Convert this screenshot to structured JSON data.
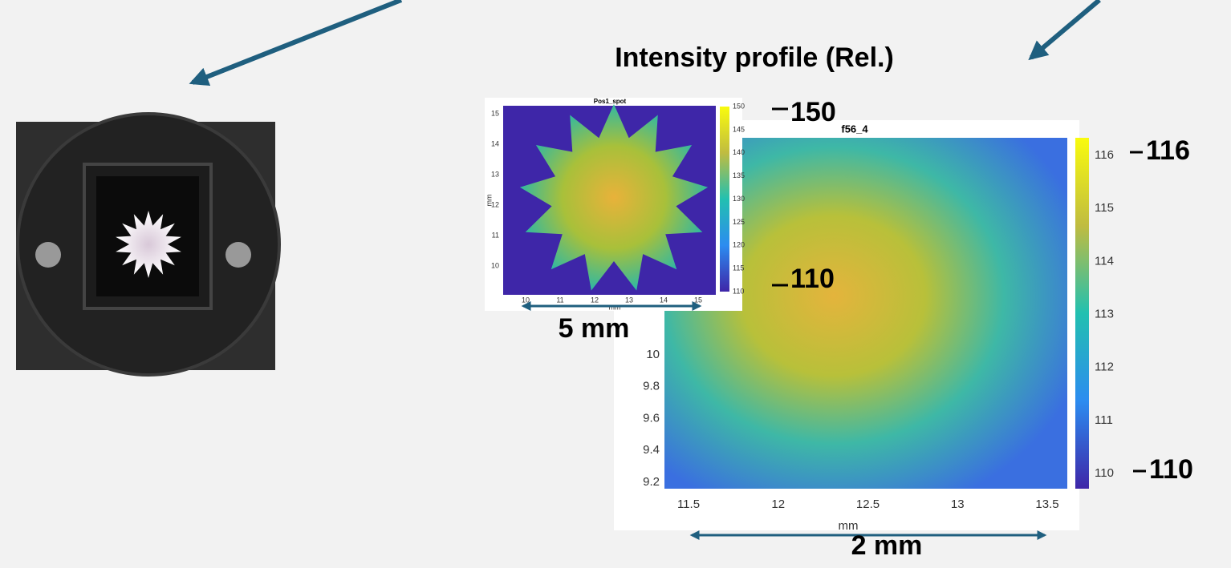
{
  "title": "Intensity profile (Rel.)",
  "small_plot": {
    "title": "Pos1_spot",
    "xlabel": "mm",
    "ylabel": "mm",
    "xticks": [
      "10",
      "11",
      "12",
      "13",
      "14",
      "15"
    ],
    "yticks": [
      "15",
      "14",
      "13",
      "12",
      "11",
      "10"
    ],
    "colorbar_ticks": [
      "150",
      "145",
      "140",
      "135",
      "130",
      "125",
      "120",
      "115",
      "110"
    ]
  },
  "large_plot": {
    "title": "f56_4",
    "xlabel": "mm",
    "xticks": [
      "11.5",
      "12",
      "12.5",
      "13",
      "13.5"
    ],
    "yticks": [
      "10",
      "9.8",
      "9.6",
      "9.4",
      "9.2"
    ],
    "colorbar_ticks": [
      "116",
      "115",
      "114",
      "113",
      "112",
      "111",
      "110"
    ]
  },
  "annotations": {
    "small_max": "150",
    "small_min": "110",
    "small_width": "5 mm",
    "large_max": "116",
    "large_min": "110",
    "large_width": "2 mm"
  }
}
